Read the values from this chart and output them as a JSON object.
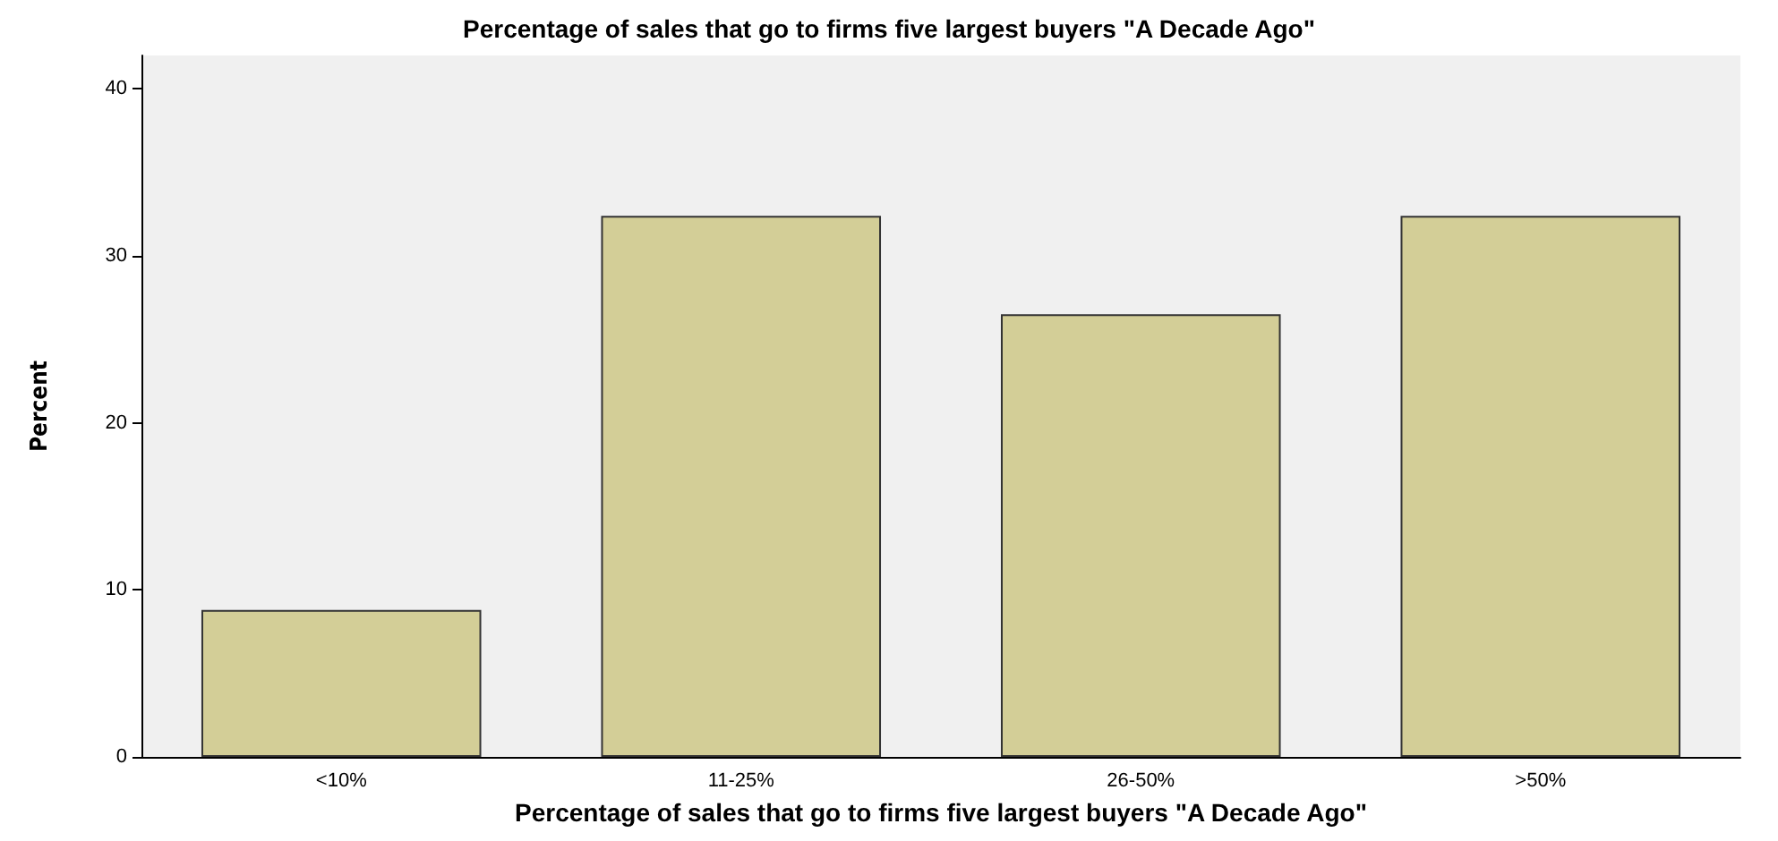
{
  "chart_data": {
    "type": "bar",
    "title": "Percentage of sales that go to firms five largest buyers \"A Decade Ago\"",
    "xlabel": "Percentage of sales that go to firms five largest buyers \"A Decade Ago\"",
    "ylabel": "Percent",
    "categories": [
      "<10%",
      "11-25%",
      "26-50%",
      ">50%"
    ],
    "values": [
      8.8,
      32.4,
      26.5,
      32.4
    ],
    "color": "#d3ce97",
    "ylim": [
      0,
      42
    ],
    "yticks": [
      0,
      10,
      20,
      30,
      40
    ],
    "grid": false
  }
}
